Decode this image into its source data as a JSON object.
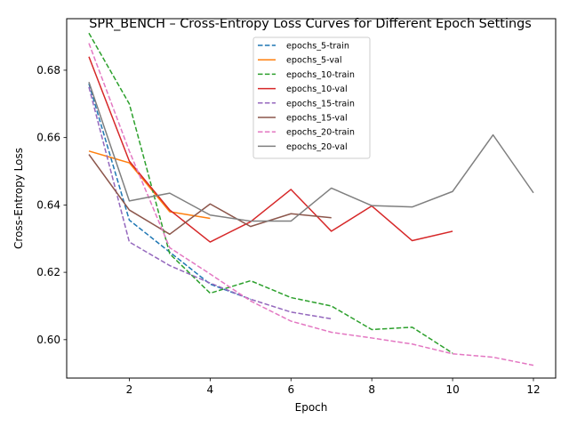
{
  "chart_data": {
    "type": "line",
    "title": "SPR_BENCH – Cross-Entropy Loss Curves for Different Epoch Settings",
    "xlabel": "Epoch",
    "ylabel": "Cross-Entropy Loss",
    "xlim": [
      0.45,
      12.55
    ],
    "ylim": [
      0.5886,
      0.6953
    ],
    "xticks": [
      2,
      4,
      6,
      8,
      10,
      12
    ],
    "yticks": [
      0.6,
      0.62,
      0.64,
      0.66,
      0.68
    ],
    "ytick_labels": [
      "0.60",
      "0.62",
      "0.64",
      "0.66",
      "0.68"
    ],
    "grid": false,
    "legend_position": "top-center",
    "series": [
      {
        "name": "epochs_5-train",
        "color": "#1f77b4",
        "dashed": true,
        "x": [
          1,
          2,
          3,
          4,
          5
        ],
        "y": [
          0.676,
          0.6355,
          0.626,
          0.6165,
          0.612
        ]
      },
      {
        "name": "epochs_5-val",
        "color": "#ff7f0e",
        "dashed": false,
        "x": [
          1,
          2,
          3,
          4
        ],
        "y": [
          0.656,
          0.6525,
          0.638,
          0.636
        ]
      },
      {
        "name": "epochs_10-train",
        "color": "#2ca02c",
        "dashed": true,
        "x": [
          1,
          2,
          3,
          4,
          5,
          6,
          7,
          8,
          9,
          10
        ],
        "y": [
          0.691,
          0.67,
          0.6255,
          0.6138,
          0.6175,
          0.6125,
          0.61,
          0.603,
          0.6037,
          0.596
        ]
      },
      {
        "name": "epochs_10-val",
        "color": "#d62728",
        "dashed": false,
        "x": [
          1,
          2,
          3,
          4,
          5,
          6,
          7,
          8,
          9,
          10
        ],
        "y": [
          0.684,
          0.653,
          0.6385,
          0.629,
          0.635,
          0.6446,
          0.6322,
          0.6397,
          0.6294,
          0.6322
        ]
      },
      {
        "name": "epochs_15-train",
        "color": "#9467bd",
        "dashed": true,
        "x": [
          1,
          2,
          3,
          4,
          5,
          6,
          7
        ],
        "y": [
          0.675,
          0.629,
          0.622,
          0.6168,
          0.612,
          0.6082,
          0.6062
        ]
      },
      {
        "name": "epochs_15-val",
        "color": "#8c564b",
        "dashed": false,
        "x": [
          1,
          2,
          3,
          4,
          5,
          6,
          7
        ],
        "y": [
          0.655,
          0.6385,
          0.6313,
          0.6403,
          0.6336,
          0.6374,
          0.6362
        ]
      },
      {
        "name": "epochs_20-train",
        "color": "#e377c2",
        "dashed": true,
        "x": [
          1,
          2,
          3,
          4,
          5,
          6,
          7,
          8,
          9,
          10,
          11,
          12
        ],
        "y": [
          0.688,
          0.656,
          0.6273,
          0.6195,
          0.6115,
          0.6055,
          0.6022,
          0.6005,
          0.5987,
          0.5958,
          0.5948,
          0.5924
        ]
      },
      {
        "name": "epochs_20-val",
        "color": "#7f7f7f",
        "dashed": false,
        "x": [
          1,
          2,
          3,
          4,
          5,
          6,
          7,
          8,
          9,
          10,
          11,
          12
        ],
        "y": [
          0.6765,
          0.6412,
          0.6435,
          0.637,
          0.6352,
          0.6352,
          0.645,
          0.6398,
          0.6394,
          0.644,
          0.6608,
          0.6436
        ]
      }
    ]
  }
}
